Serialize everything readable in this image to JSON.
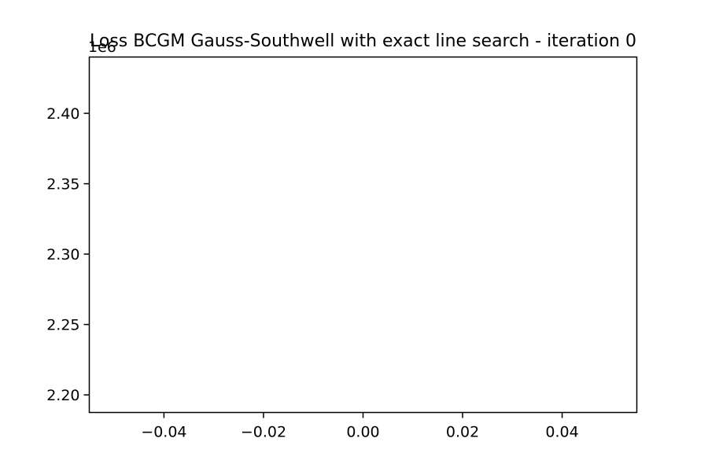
{
  "chart_data": {
    "type": "line",
    "title": "Loss BCGM Gauss-Southwell with exact line search - iteration 0",
    "xlabel": "",
    "ylabel": "",
    "xlim": [
      -0.055,
      0.055
    ],
    "ylim": [
      2187500,
      2440000
    ],
    "x_ticks": [
      -0.04,
      -0.02,
      0.0,
      0.02,
      0.04
    ],
    "x_tick_labels": [
      "−0.04",
      "−0.02",
      "0.00",
      "0.02",
      "0.04"
    ],
    "y_ticks": [
      2200000,
      2250000,
      2300000,
      2350000,
      2400000
    ],
    "y_tick_labels": [
      "2.20",
      "2.25",
      "2.30",
      "2.35",
      "2.40"
    ],
    "y_offset_label": "1e6",
    "grid": false,
    "series": [
      {
        "x": [],
        "y": [],
        "color": "#1f77b4"
      }
    ]
  }
}
